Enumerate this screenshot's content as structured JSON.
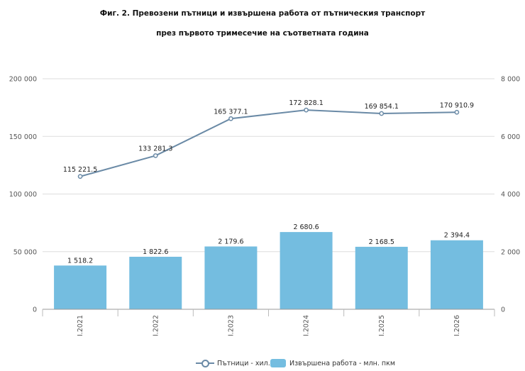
{
  "title_line1": "Фиг. 2. Превозени пътници и извършена работа от пътническия транспорт",
  "title_line2": "през първото тримесечие на съответната година",
  "legend": {
    "line_label": "Пътници - хил.",
    "bar_label": "Извършена работа - млн. пкм"
  },
  "colors": {
    "bar": "#74bde0",
    "line": "#6a8aa6",
    "grid": "#dddddd"
  },
  "chart_data": {
    "type": "bar",
    "categories": [
      "I.2021",
      "I.2022",
      "I.2023",
      "I.2024",
      "I.2025",
      "I.2026"
    ],
    "series": [
      {
        "name": "Пътници - хил.",
        "type": "line",
        "axis": "left",
        "values": [
          115221.5,
          133281.3,
          165377.1,
          172828.1,
          169854.1,
          170910.9
        ],
        "labels": [
          "115 221.5",
          "133 281.3",
          "165 377.1",
          "172 828.1",
          "169 854.1",
          "170 910.9"
        ]
      },
      {
        "name": "Извършена работа - млн. пкм",
        "type": "bar",
        "axis": "right",
        "values": [
          1518.2,
          1822.6,
          2179.6,
          2680.6,
          2168.5,
          2394.4
        ],
        "labels": [
          "1 518.2",
          "1 822.6",
          "2 179.6",
          "2 680.6",
          "2 168.5",
          "2 394.4"
        ]
      }
    ],
    "y_left": {
      "lim": [
        0,
        200000
      ],
      "ticks": [
        "0",
        "50 000",
        "100 000",
        "150 000",
        "200 000"
      ]
    },
    "y_right": {
      "lim": [
        0,
        8000
      ],
      "ticks": [
        "0",
        "2 000",
        "4 000",
        "6 000",
        "8 000"
      ]
    },
    "grid": true,
    "legend_position": "bottom"
  }
}
